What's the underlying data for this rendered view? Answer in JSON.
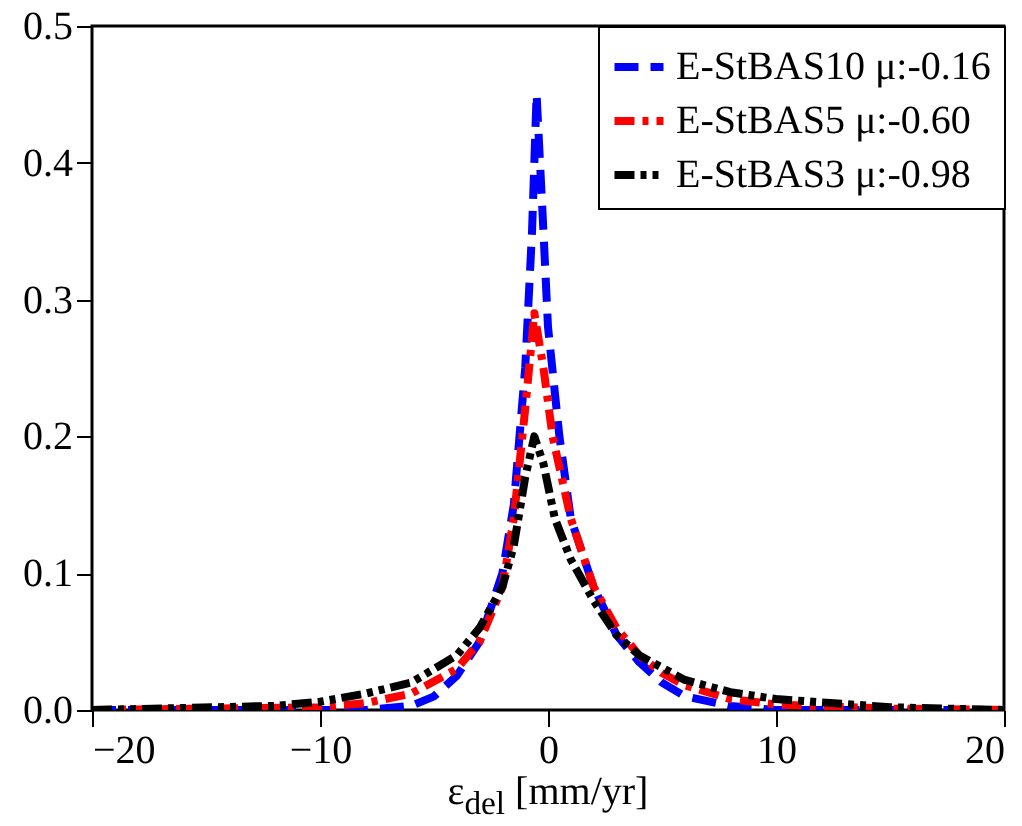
{
  "chart_data": {
    "type": "line",
    "xlabel": "ε$_{d}$$_{el}$ [mm/yr]",
    "xlim": [
      -20,
      20
    ],
    "xticks": [
      -20,
      -10,
      0,
      10,
      20
    ],
    "ylim": [
      0,
      0.5
    ],
    "yticks": [
      {
        "value": 0,
        "label": "0.0"
      },
      0.1,
      0.2,
      0.3,
      0.4,
      0.5
    ],
    "grid": false,
    "legend": "top right",
    "line_style": "dashed",
    "marker": "none",
    "series": [
      {
        "name": "E-StBAS10 μ:-0.16",
        "color": "#0000ff",
        "x": [
          -20,
          -8,
          -6,
          -5,
          -4,
          -3,
          -2,
          -1.5,
          -1,
          -0.7,
          -0.5,
          -0.2,
          0,
          0.5,
          1,
          2,
          3,
          4,
          5,
          6,
          8,
          10,
          20
        ],
        "values": [
          0,
          0,
          0.003,
          0.01,
          0.025,
          0.05,
          0.1,
          0.15,
          0.25,
          0.35,
          0.45,
          0.35,
          0.28,
          0.2,
          0.14,
          0.09,
          0.055,
          0.035,
          0.02,
          0.01,
          0.003,
          0,
          0
        ]
      },
      {
        "name": "E-StBAS5 μ:-0.60",
        "color": "#ff0000",
        "x": [
          -20,
          -10,
          -8,
          -6,
          -4,
          -3,
          -2,
          -1.5,
          -1,
          -0.6,
          -0.2,
          0.2,
          1,
          2,
          3,
          4,
          5,
          6,
          8,
          10,
          15,
          20
        ],
        "values": [
          0,
          0.002,
          0.005,
          0.012,
          0.03,
          0.05,
          0.09,
          0.14,
          0.22,
          0.29,
          0.25,
          0.2,
          0.14,
          0.09,
          0.06,
          0.04,
          0.027,
          0.018,
          0.008,
          0.004,
          0.001,
          0
        ]
      },
      {
        "name": "E-StBAS3 μ:-0.98",
        "color": "#000000",
        "x": [
          -20,
          -12,
          -10,
          -8,
          -6,
          -4,
          -3,
          -2,
          -1.5,
          -1,
          -0.6,
          -0.2,
          0.3,
          1,
          2,
          3,
          4,
          6,
          8,
          10,
          15,
          20
        ],
        "values": [
          0,
          0.003,
          0.006,
          0.012,
          0.02,
          0.04,
          0.06,
          0.09,
          0.12,
          0.17,
          0.2,
          0.18,
          0.14,
          0.11,
          0.08,
          0.055,
          0.04,
          0.022,
          0.013,
          0.008,
          0.002,
          0
        ]
      }
    ]
  }
}
